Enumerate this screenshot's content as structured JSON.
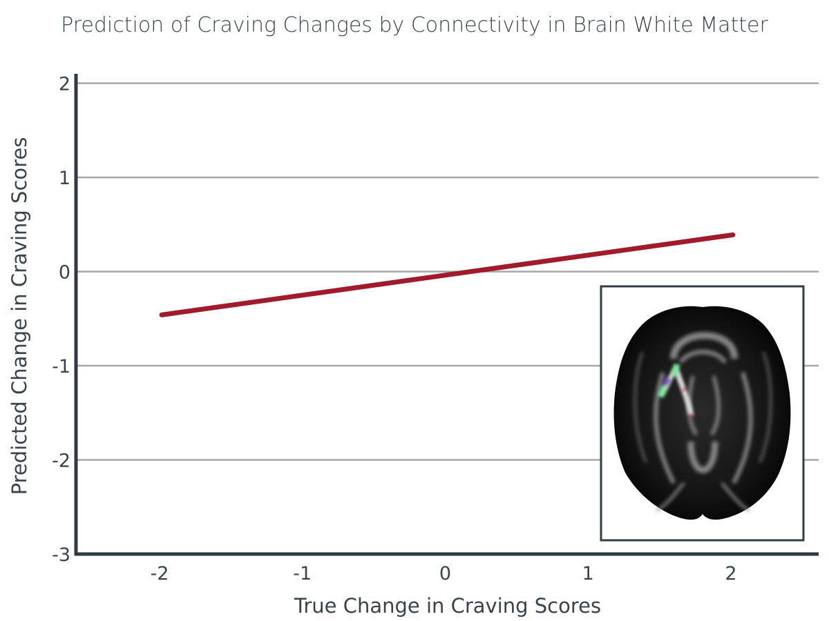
{
  "chart_data": {
    "type": "line",
    "title": "Prediction of Craving Changes by Connectivity in Brain White Matter",
    "xlabel": "True Change in Craving Scores",
    "ylabel": "Predicted Change in Craving Scores",
    "xlim": [
      -2.6,
      2.6
    ],
    "ylim": [
      -3,
      2.1
    ],
    "xticks": [
      "-2",
      "-1",
      "0",
      "1",
      "2"
    ],
    "yticks": [
      "2",
      "1",
      "0",
      "-1",
      "-2",
      "-3"
    ],
    "grid": true,
    "series": [
      {
        "x": [
          -2,
          2
        ],
        "y": [
          -0.46,
          0.39
        ],
        "color": "#a01c2d"
      }
    ],
    "inset": "brain-white-matter-axial-image"
  }
}
